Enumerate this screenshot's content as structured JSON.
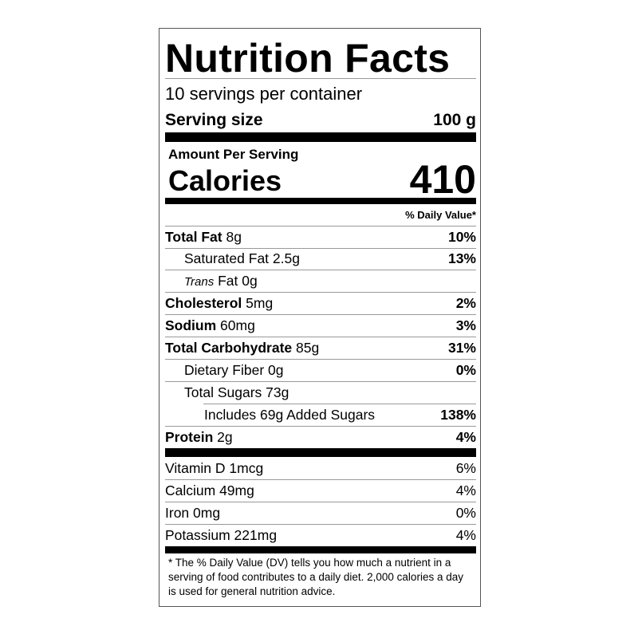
{
  "title": "Nutrition Facts",
  "servings_per_container": "10 servings per container",
  "serving_size": {
    "label": "Serving size",
    "value": "100 g"
  },
  "amount_per_serving": "Amount Per Serving",
  "calories": {
    "label": "Calories",
    "value": "410"
  },
  "daily_value_header": "% Daily Value*",
  "nutrients": [
    {
      "name": "Total Fat",
      "amount": "8g",
      "dv": "10%"
    },
    {
      "name": "Saturated Fat",
      "amount": "2.5g",
      "dv": "13%"
    },
    {
      "name_italic": "Trans",
      "name": "Fat",
      "amount": "0g",
      "dv": ""
    },
    {
      "name": "Cholesterol",
      "amount": "5mg",
      "dv": "2%"
    },
    {
      "name": "Sodium",
      "amount": "60mg",
      "dv": "3%"
    },
    {
      "name": "Total Carbohydrate",
      "amount": "85g",
      "dv": "31%"
    },
    {
      "name": "Dietary Fiber",
      "amount": "0g",
      "dv": "0%"
    },
    {
      "name": "Total Sugars",
      "amount": "73g",
      "dv": ""
    },
    {
      "name": "Includes 69g Added Sugars",
      "amount": "",
      "dv": "138%"
    },
    {
      "name": "Protein",
      "amount": "2g",
      "dv": "4%"
    }
  ],
  "vitamins": [
    {
      "label": "Vitamin D 1mcg",
      "dv": "6%"
    },
    {
      "label": "Calcium 49mg",
      "dv": "4%"
    },
    {
      "label": "Iron 0mg",
      "dv": "0%"
    },
    {
      "label": "Potassium 221mg",
      "dv": "4%"
    }
  ],
  "footnote": "* The % Daily Value (DV) tells you how much a nutrient in a serving of food contributes to a daily diet. 2,000 calories a day is used for general nutrition advice."
}
